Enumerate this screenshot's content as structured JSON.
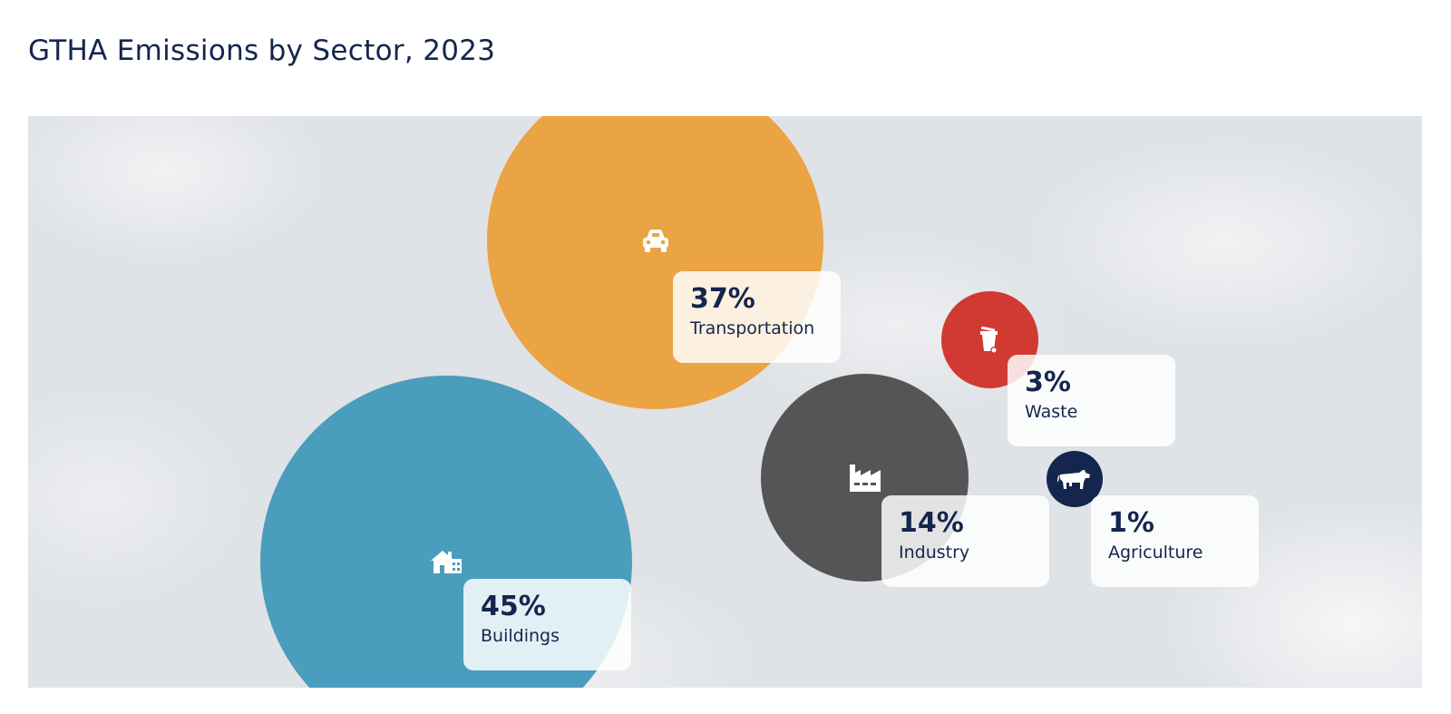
{
  "page": {
    "title": "GTHA Emissions by Sector, 2023"
  },
  "chart_data": {
    "type": "bubble",
    "title": "GTHA Emissions by Sector, 2023",
    "unit": "%",
    "series": [
      {
        "name": "Buildings",
        "value": 45,
        "label": "45%",
        "color": "#4a9dbd",
        "icon": "house-icon"
      },
      {
        "name": "Transportation",
        "value": 37,
        "label": "37%",
        "color": "#eba443",
        "icon": "car-icon"
      },
      {
        "name": "Industry",
        "value": 14,
        "label": "14%",
        "color": "#555555",
        "icon": "factory-icon"
      },
      {
        "name": "Waste",
        "value": 3,
        "label": "3%",
        "color": "#d03a32",
        "icon": "waste-bin-icon"
      },
      {
        "name": "Agriculture",
        "value": 1,
        "label": "1%",
        "color": "#14264d",
        "icon": "cow-icon"
      }
    ]
  }
}
